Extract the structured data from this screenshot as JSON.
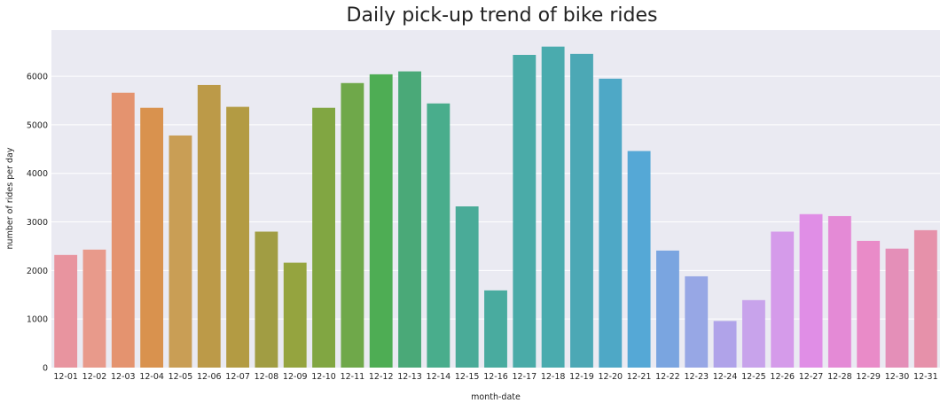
{
  "chart_data": {
    "type": "bar",
    "title": "Daily pick-up trend of bike rides",
    "xlabel": "month-date",
    "ylabel": "number of rides per day",
    "ylim": [
      0,
      6950
    ],
    "yticks": [
      0,
      1000,
      2000,
      3000,
      4000,
      5000,
      6000
    ],
    "grid": true,
    "categories": [
      "12-01",
      "12-02",
      "12-03",
      "12-04",
      "12-05",
      "12-06",
      "12-07",
      "12-08",
      "12-09",
      "12-10",
      "12-11",
      "12-12",
      "12-13",
      "12-14",
      "12-15",
      "12-16",
      "12-17",
      "12-18",
      "12-19",
      "12-20",
      "12-21",
      "12-22",
      "12-23",
      "12-24",
      "12-25",
      "12-26",
      "12-27",
      "12-28",
      "12-29",
      "12-30",
      "12-31"
    ],
    "values": [
      2320,
      2430,
      5660,
      5350,
      4780,
      5820,
      5370,
      2800,
      2160,
      5350,
      5860,
      6040,
      6100,
      5440,
      3320,
      1590,
      6440,
      6610,
      6460,
      5950,
      4460,
      2410,
      1880,
      960,
      1390,
      2800,
      3160,
      3120,
      2610,
      2450,
      2830
    ],
    "colors": [
      "#e8949f",
      "#e89a8b",
      "#e4936f",
      "#d9924e",
      "#c99e55",
      "#bc9a48",
      "#b39b43",
      "#a19d43",
      "#95a43f",
      "#81a642",
      "#6fa84a",
      "#4ead54",
      "#4aa978",
      "#49ad8c",
      "#4aab98",
      "#49ab9f",
      "#4aaba8",
      "#4aabae",
      "#4ca8b5",
      "#4ea8c6",
      "#55a8d6",
      "#7aa5e0",
      "#97a7e5",
      "#b0a3e9",
      "#c8a3eb",
      "#d59bea",
      "#e08ee6",
      "#e48ad6",
      "#e98bc8",
      "#e48fb8",
      "#e691aa"
    ]
  }
}
